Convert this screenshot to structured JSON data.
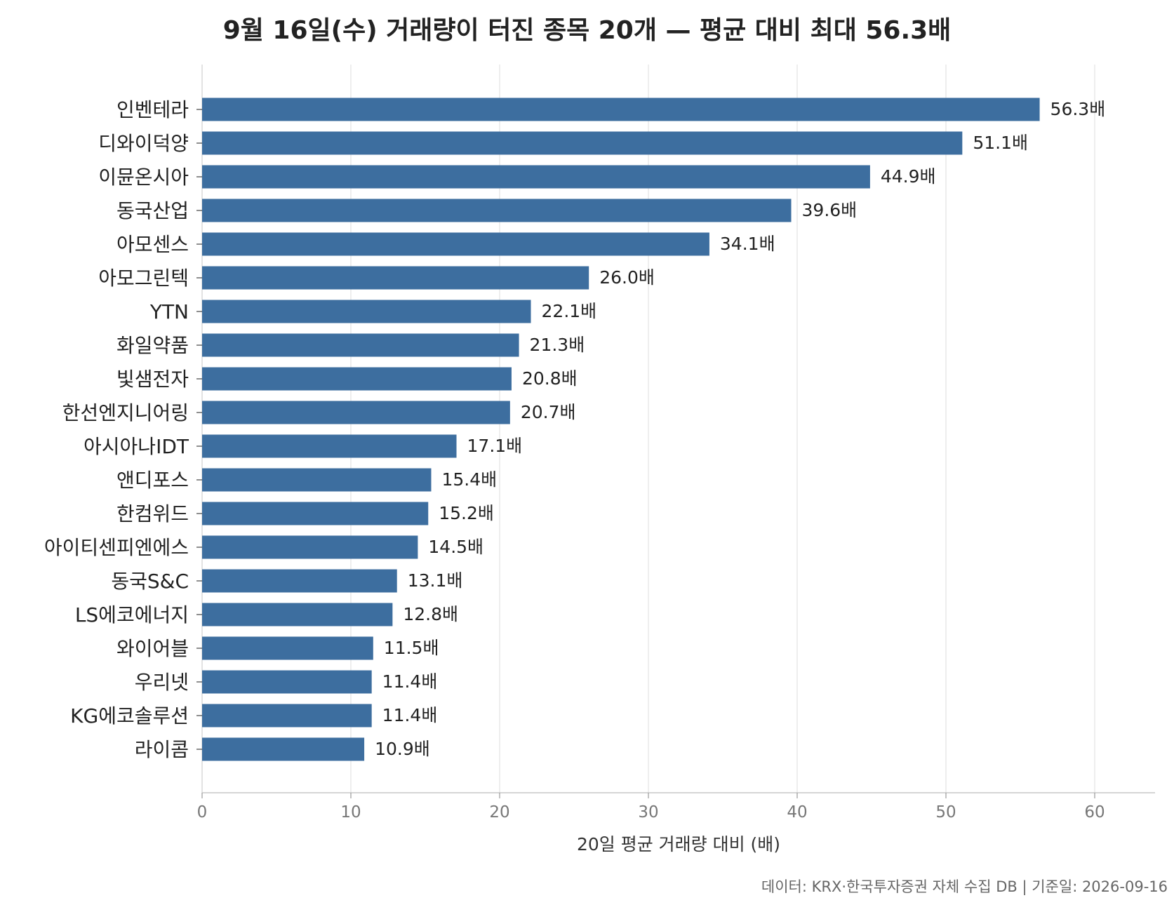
{
  "chart_data": {
    "type": "bar",
    "orientation": "horizontal",
    "title": "9월 16일(수) 거래량이 터진 종목 20개 — 평균 대비 최대 56.3배",
    "xlabel": "20일 평균 거래량 대비 (배)",
    "ylabel": "",
    "xlim": [
      0,
      64
    ],
    "xticks": [
      0,
      10,
      20,
      30,
      40,
      50,
      60
    ],
    "grid": "vertical",
    "value_suffix": "배",
    "bar_color": "#3d6e9f",
    "categories": [
      "인벤테라",
      "디와이덕양",
      "이뮨온시아",
      "동국산업",
      "아모센스",
      "아모그린텍",
      "YTN",
      "화일약품",
      "빛샘전자",
      "한선엔지니어링",
      "아시아나IDT",
      "앤디포스",
      "한컴위드",
      "아이티센피엔에스",
      "동국S&C",
      "LS에코에너지",
      "와이어블",
      "우리넷",
      "KG에코솔루션",
      "라이콤"
    ],
    "values": [
      56.3,
      51.1,
      44.9,
      39.6,
      34.1,
      26.0,
      22.1,
      21.3,
      20.8,
      20.7,
      17.1,
      15.4,
      15.2,
      14.5,
      13.1,
      12.8,
      11.5,
      11.4,
      11.4,
      10.9
    ],
    "value_labels": [
      "56.3배",
      "51.1배",
      "44.9배",
      "39.6배",
      "34.1배",
      "26.0배",
      "22.1배",
      "21.3배",
      "20.8배",
      "20.7배",
      "17.1배",
      "15.4배",
      "15.2배",
      "14.5배",
      "13.1배",
      "12.8배",
      "11.5배",
      "11.4배",
      "11.4배",
      "10.9배"
    ],
    "source": "데이터: KRX·한국투자증권 자체 수집 DB  |  기준일: 2026-09-16"
  }
}
